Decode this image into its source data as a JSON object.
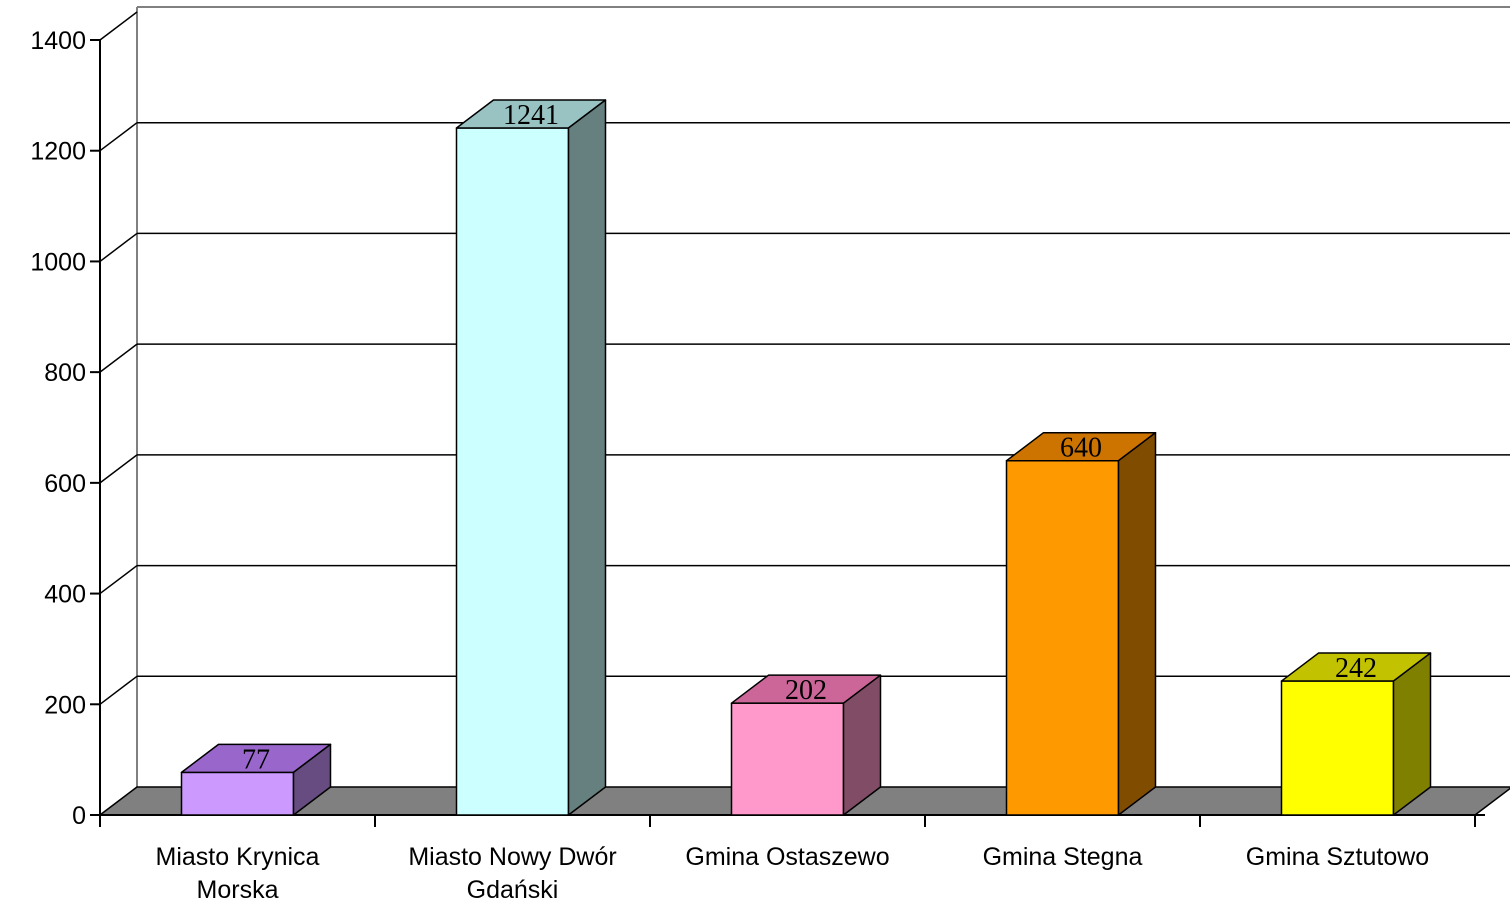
{
  "chart_data": {
    "type": "bar",
    "style": "3d-column",
    "categories": [
      [
        "Miasto Krynica",
        "Morska"
      ],
      [
        "Miasto Nowy Dwór",
        "Gdański"
      ],
      [
        "Gmina Ostaszewo"
      ],
      [
        "Gmina Stegna"
      ],
      [
        "Gmina Sztutowo"
      ]
    ],
    "values": [
      77,
      1241,
      202,
      640,
      242
    ],
    "data_labels": [
      "77",
      "1241",
      "202",
      "640",
      "242"
    ],
    "colors": [
      {
        "front": "#CC99FF",
        "top": "#9966CC",
        "side": "#664C80"
      },
      {
        "front": "#CCFFFF",
        "top": "#99C2C2",
        "side": "#667F7F"
      },
      {
        "front": "#FF99CC",
        "top": "#CC6699",
        "side": "#804C66"
      },
      {
        "front": "#FF9900",
        "top": "#CC7300",
        "side": "#804C00"
      },
      {
        "front": "#FFFF00",
        "top": "#C2C200",
        "side": "#808000"
      }
    ],
    "ylim": [
      0,
      1400
    ],
    "yticks": [
      0,
      200,
      400,
      600,
      800,
      1000,
      1200,
      1400
    ],
    "ytick_labels": [
      "0",
      "200",
      "400",
      "600",
      "800",
      "1000",
      "1200",
      "1400"
    ],
    "grid": true,
    "floor_color": "#808080",
    "title": "",
    "xlabel": "",
    "ylabel": ""
  }
}
